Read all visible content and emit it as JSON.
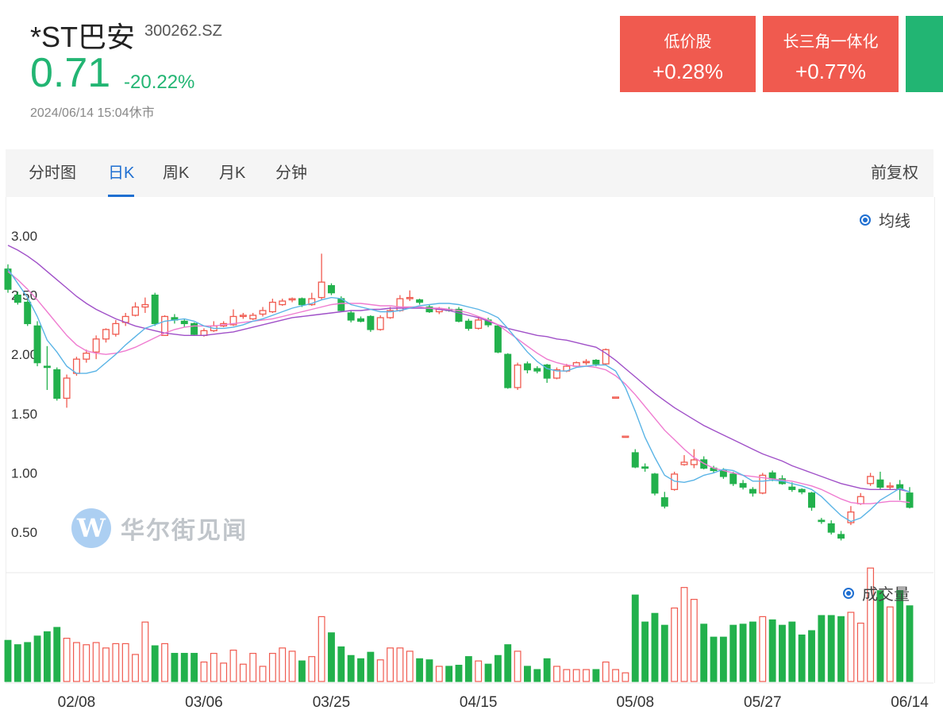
{
  "header": {
    "name": "*ST巴安",
    "code": "300262.SZ",
    "price": "0.71",
    "change_pct": "-20.22%",
    "datetime": "2024/06/14 15:04",
    "status": "休市"
  },
  "tags": [
    {
      "name": "低价股",
      "value": "+0.28%",
      "color": "#f05a4f"
    },
    {
      "name": "长三角一体化",
      "value": "+0.77%",
      "color": "#f05a4f"
    },
    {
      "name": "",
      "value": "",
      "color": "#22b573"
    }
  ],
  "tabs": [
    {
      "label": "分时图",
      "active": false
    },
    {
      "label": "日K",
      "active": true
    },
    {
      "label": "周K",
      "active": false
    },
    {
      "label": "月K",
      "active": false
    },
    {
      "label": "分钟",
      "active": false
    }
  ],
  "adjust_label": "前复权",
  "legend_ma": "均线",
  "legend_volume": "成交量",
  "watermark": "华尔街见闻",
  "colors": {
    "up": "#f05a4f",
    "down": "#22b14c",
    "ma_short": "#5ab4e6",
    "ma_mid": "#ef7bd0",
    "ma_long": "#a050c8",
    "accent": "#1f6fd1"
  },
  "chart_data": {
    "type": "candlestick",
    "yticks": [
      "3.00",
      "2.50",
      "2.00",
      "1.50",
      "1.00",
      "0.50"
    ],
    "ylim": [
      0.3,
      3.15
    ],
    "xticks": [
      "02/08",
      "03/06",
      "03/25",
      "04/15",
      "05/08",
      "05/27",
      "06/14"
    ],
    "candles": [
      [
        2.72,
        2.55,
        2.76,
        2.52,
        0.38
      ],
      [
        2.5,
        2.44,
        2.53,
        2.42,
        0.34
      ],
      [
        2.44,
        2.26,
        2.46,
        2.24,
        0.36
      ],
      [
        2.24,
        1.93,
        2.28,
        1.9,
        0.42
      ],
      [
        1.9,
        1.89,
        2.07,
        1.7,
        0.46
      ],
      [
        1.87,
        1.63,
        1.89,
        1.61,
        0.5
      ],
      [
        1.63,
        1.8,
        1.83,
        1.55,
        0.4
      ],
      [
        1.84,
        1.96,
        1.98,
        1.82,
        0.36
      ],
      [
        1.96,
        2.01,
        2.04,
        1.93,
        0.34
      ],
      [
        2.02,
        2.13,
        2.16,
        1.96,
        0.36
      ],
      [
        2.13,
        2.21,
        2.22,
        2.1,
        0.31
      ],
      [
        2.17,
        2.26,
        2.29,
        2.15,
        0.35
      ],
      [
        2.27,
        2.32,
        2.35,
        2.24,
        0.35
      ],
      [
        2.33,
        2.4,
        2.44,
        2.32,
        0.25
      ],
      [
        2.4,
        2.42,
        2.48,
        2.35,
        0.55
      ],
      [
        2.5,
        2.26,
        2.52,
        2.24,
        0.33
      ],
      [
        2.16,
        2.32,
        2.33,
        2.16,
        0.35
      ],
      [
        2.31,
        2.29,
        2.34,
        2.26,
        0.26
      ],
      [
        2.28,
        2.26,
        2.3,
        2.23,
        0.26
      ],
      [
        2.26,
        2.17,
        2.27,
        2.16,
        0.26
      ],
      [
        2.16,
        2.2,
        2.22,
        2.15,
        0.18
      ],
      [
        2.2,
        2.24,
        2.28,
        2.19,
        0.26
      ],
      [
        2.24,
        2.26,
        2.28,
        2.23,
        0.17
      ],
      [
        2.25,
        2.32,
        2.38,
        2.24,
        0.29
      ],
      [
        2.32,
        2.33,
        2.35,
        2.3,
        0.16
      ],
      [
        2.3,
        2.33,
        2.35,
        2.29,
        0.26
      ],
      [
        2.34,
        2.37,
        2.4,
        2.32,
        0.14
      ],
      [
        2.36,
        2.44,
        2.47,
        2.35,
        0.26
      ],
      [
        2.42,
        2.45,
        2.47,
        2.41,
        0.31
      ],
      [
        2.46,
        2.47,
        2.48,
        2.44,
        0.28
      ],
      [
        2.47,
        2.42,
        2.48,
        2.4,
        0.19
      ],
      [
        2.42,
        2.47,
        2.52,
        2.41,
        0.23
      ],
      [
        2.48,
        2.61,
        2.85,
        2.46,
        0.6
      ],
      [
        2.58,
        2.52,
        2.6,
        2.5,
        0.45
      ],
      [
        2.47,
        2.37,
        2.49,
        2.36,
        0.32
      ],
      [
        2.35,
        2.29,
        2.37,
        2.27,
        0.24
      ],
      [
        2.3,
        2.28,
        2.32,
        2.27,
        0.21
      ],
      [
        2.32,
        2.21,
        2.33,
        2.19,
        0.27
      ],
      [
        2.21,
        2.31,
        2.33,
        2.2,
        0.2
      ],
      [
        2.31,
        2.37,
        2.4,
        2.3,
        0.31
      ],
      [
        2.37,
        2.47,
        2.5,
        2.36,
        0.31
      ],
      [
        2.47,
        2.48,
        2.54,
        2.45,
        0.28
      ],
      [
        2.46,
        2.44,
        2.47,
        2.42,
        0.21
      ],
      [
        2.4,
        2.36,
        2.42,
        2.35,
        0.2
      ],
      [
        2.36,
        2.38,
        2.4,
        2.34,
        0.14
      ],
      [
        2.38,
        2.37,
        2.4,
        2.36,
        0.14
      ],
      [
        2.38,
        2.28,
        2.4,
        2.27,
        0.15
      ],
      [
        2.28,
        2.22,
        2.3,
        2.2,
        0.23
      ],
      [
        2.22,
        2.29,
        2.32,
        2.21,
        0.19
      ],
      [
        2.29,
        2.25,
        2.31,
        2.23,
        0.16
      ],
      [
        2.24,
        2.02,
        2.25,
        2.01,
        0.24
      ],
      [
        2.0,
        1.72,
        2.01,
        1.71,
        0.34
      ],
      [
        1.72,
        1.91,
        1.93,
        1.7,
        0.28
      ],
      [
        1.92,
        1.87,
        1.94,
        1.84,
        0.14
      ],
      [
        1.88,
        1.86,
        1.9,
        1.84,
        0.11
      ],
      [
        1.91,
        1.8,
        1.92,
        1.76,
        0.21
      ],
      [
        1.8,
        1.87,
        1.89,
        1.79,
        0.14
      ],
      [
        1.86,
        1.9,
        1.92,
        1.85,
        0.11
      ],
      [
        1.9,
        1.93,
        1.94,
        1.89,
        0.11
      ],
      [
        1.93,
        1.94,
        1.96,
        1.91,
        0.11
      ],
      [
        1.95,
        1.92,
        1.96,
        1.9,
        0.11
      ],
      [
        1.92,
        2.04,
        2.05,
        1.91,
        0.18
      ],
      [
        1.64,
        1.64,
        1.64,
        1.64,
        0.11
      ],
      [
        1.31,
        1.31,
        1.31,
        1.31,
        0.08
      ],
      [
        1.17,
        1.05,
        1.2,
        1.04,
        0.8
      ],
      [
        1.05,
        1.04,
        1.08,
        1.01,
        0.55
      ],
      [
        0.99,
        0.83,
        1.0,
        0.81,
        0.63
      ],
      [
        0.79,
        0.72,
        0.84,
        0.7,
        0.52
      ],
      [
        0.86,
        0.99,
        1.01,
        0.85,
        0.68
      ],
      [
        1.07,
        1.09,
        1.15,
        1.06,
        0.87
      ],
      [
        1.07,
        1.11,
        1.2,
        1.04,
        0.76
      ],
      [
        1.11,
        1.04,
        1.14,
        1.03,
        0.53
      ],
      [
        1.04,
        1.02,
        1.06,
        1.0,
        0.41
      ],
      [
        1.02,
        0.97,
        1.04,
        0.95,
        0.41
      ],
      [
        0.99,
        0.91,
        1.01,
        0.89,
        0.52
      ],
      [
        0.91,
        0.88,
        0.94,
        0.86,
        0.53
      ],
      [
        0.86,
        0.83,
        0.88,
        0.8,
        0.55
      ],
      [
        0.83,
        0.98,
        1.0,
        0.82,
        0.6
      ],
      [
        1.0,
        0.95,
        1.02,
        0.93,
        0.57
      ],
      [
        0.95,
        0.91,
        0.98,
        0.9,
        0.52
      ],
      [
        0.88,
        0.86,
        0.92,
        0.84,
        0.55
      ],
      [
        0.86,
        0.84,
        0.87,
        0.82,
        0.43
      ],
      [
        0.83,
        0.71,
        0.84,
        0.68,
        0.47
      ],
      [
        0.6,
        0.59,
        0.62,
        0.57,
        0.61
      ],
      [
        0.57,
        0.5,
        0.6,
        0.48,
        0.61
      ],
      [
        0.48,
        0.45,
        0.51,
        0.43,
        0.6
      ],
      [
        0.58,
        0.67,
        0.72,
        0.56,
        0.64
      ],
      [
        0.74,
        0.8,
        0.83,
        0.73,
        0.54
      ],
      [
        0.91,
        0.97,
        1.0,
        0.89,
        1.05
      ],
      [
        0.94,
        0.88,
        1.01,
        0.86,
        0.84
      ],
      [
        0.88,
        0.89,
        0.92,
        0.86,
        0.69
      ],
      [
        0.9,
        0.87,
        0.94,
        0.77,
        0.84
      ],
      [
        0.83,
        0.71,
        0.88,
        0.7,
        0.7
      ]
    ],
    "ma_short": [
      2.72,
      2.6,
      2.48,
      2.32,
      2.12,
      2.02,
      1.9,
      1.84,
      1.84,
      1.86,
      1.93,
      2.0,
      2.08,
      2.15,
      2.22,
      2.25,
      2.28,
      2.29,
      2.3,
      2.28,
      2.24,
      2.22,
      2.22,
      2.23,
      2.25,
      2.28,
      2.3,
      2.33,
      2.36,
      2.39,
      2.41,
      2.43,
      2.46,
      2.48,
      2.47,
      2.42,
      2.4,
      2.38,
      2.36,
      2.36,
      2.37,
      2.39,
      2.41,
      2.42,
      2.43,
      2.43,
      2.42,
      2.4,
      2.38,
      2.35,
      2.31,
      2.22,
      2.12,
      2.02,
      1.94,
      1.88,
      1.86,
      1.86,
      1.89,
      1.9,
      1.91,
      1.91,
      1.86,
      1.72,
      1.52,
      1.3,
      1.13,
      0.98,
      0.93,
      0.92,
      0.94,
      0.98,
      1.0,
      1.03,
      1.02,
      0.98,
      0.93,
      0.93,
      0.94,
      0.93,
      0.91,
      0.89,
      0.86,
      0.8,
      0.72,
      0.64,
      0.59,
      0.62,
      0.69,
      0.77,
      0.82,
      0.87,
      0.84
    ],
    "ma_mid": [
      2.7,
      2.63,
      2.55,
      2.46,
      2.36,
      2.26,
      2.16,
      2.08,
      2.03,
      2.01,
      2.0,
      2.01,
      2.03,
      2.06,
      2.1,
      2.14,
      2.18,
      2.21,
      2.23,
      2.24,
      2.24,
      2.24,
      2.25,
      2.26,
      2.27,
      2.28,
      2.29,
      2.3,
      2.32,
      2.34,
      2.36,
      2.38,
      2.4,
      2.42,
      2.43,
      2.43,
      2.43,
      2.42,
      2.41,
      2.41,
      2.4,
      2.4,
      2.4,
      2.39,
      2.39,
      2.38,
      2.37,
      2.35,
      2.32,
      2.29,
      2.25,
      2.19,
      2.13,
      2.07,
      2.01,
      1.96,
      1.93,
      1.91,
      1.9,
      1.9,
      1.89,
      1.87,
      1.82,
      1.75,
      1.66,
      1.56,
      1.46,
      1.36,
      1.28,
      1.2,
      1.13,
      1.08,
      1.04,
      1.02,
      1.0,
      0.98,
      0.97,
      0.96,
      0.95,
      0.94,
      0.93,
      0.91,
      0.89,
      0.86,
      0.82,
      0.78,
      0.75,
      0.74,
      0.74,
      0.75,
      0.76,
      0.76,
      0.75
    ],
    "ma_long": [
      2.92,
      2.88,
      2.83,
      2.77,
      2.7,
      2.63,
      2.56,
      2.49,
      2.43,
      2.38,
      2.34,
      2.3,
      2.27,
      2.24,
      2.22,
      2.2,
      2.18,
      2.17,
      2.16,
      2.16,
      2.16,
      2.17,
      2.18,
      2.19,
      2.21,
      2.23,
      2.25,
      2.27,
      2.29,
      2.31,
      2.32,
      2.33,
      2.34,
      2.35,
      2.36,
      2.37,
      2.37,
      2.38,
      2.38,
      2.39,
      2.39,
      2.39,
      2.39,
      2.39,
      2.38,
      2.37,
      2.35,
      2.33,
      2.31,
      2.28,
      2.25,
      2.22,
      2.2,
      2.18,
      2.16,
      2.15,
      2.13,
      2.12,
      2.1,
      2.08,
      2.06,
      2.01,
      1.95,
      1.88,
      1.81,
      1.74,
      1.67,
      1.61,
      1.55,
      1.5,
      1.45,
      1.4,
      1.36,
      1.32,
      1.28,
      1.24,
      1.2,
      1.16,
      1.13,
      1.1,
      1.06,
      1.03,
      1.0,
      0.97,
      0.94,
      0.91,
      0.89,
      0.87,
      0.86,
      0.86,
      0.86,
      0.86,
      0.84
    ]
  }
}
